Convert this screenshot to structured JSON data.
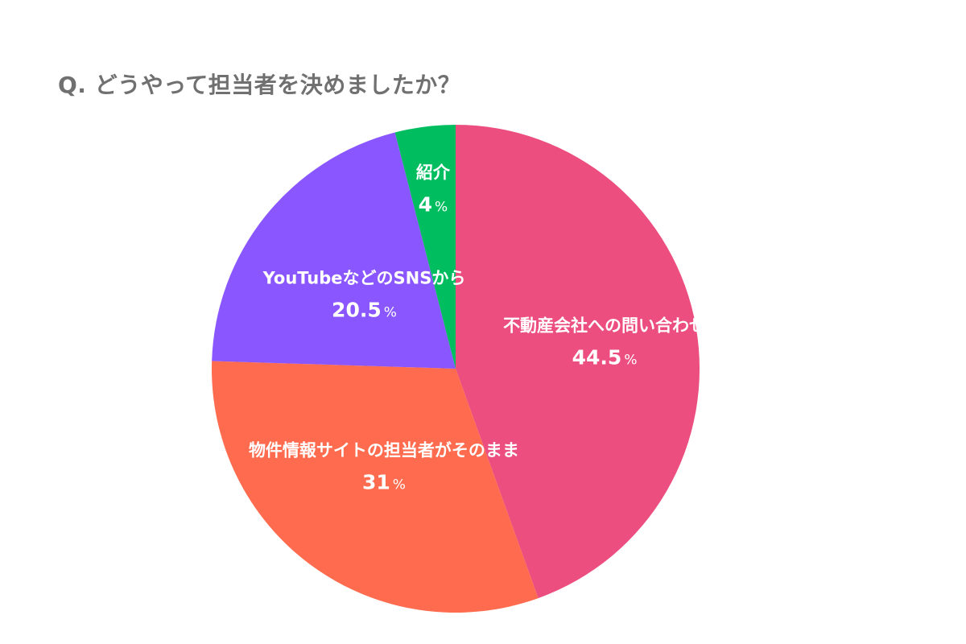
{
  "title": "Q. どうやって担当者を決めましたか？",
  "chart_data": {
    "type": "pie",
    "title": "Q. どうやって担当者を決めましたか？",
    "unit": "%",
    "slices": [
      {
        "label": "不動産会社への問い合わせ",
        "value": 44.5,
        "display": "44.5",
        "color": "#EC4E7F"
      },
      {
        "label": "物件情報サイトの担当者がそのまま",
        "value": 31,
        "display": "31",
        "color": "#FF6B4E"
      },
      {
        "label": "YouTubeなどのSNSから",
        "value": 20.5,
        "display": "20.5",
        "color": "#8A56FF"
      },
      {
        "label": "紹介",
        "value": 4,
        "display": "4",
        "color": "#00BE60"
      }
    ]
  }
}
